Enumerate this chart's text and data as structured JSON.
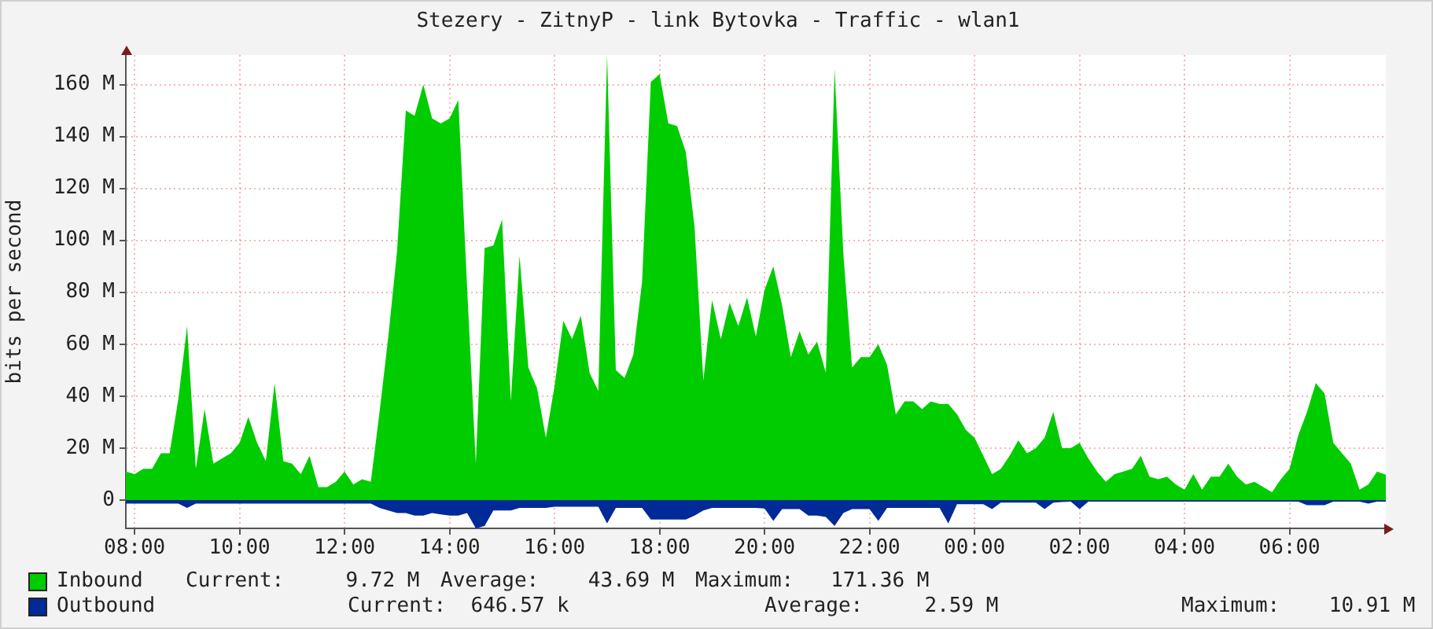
{
  "chart_data": {
    "type": "area",
    "title": "Stezery - ZitnyP - link Bytovka - Traffic - wlan1",
    "ylabel": "bits per second",
    "categories": [
      null,
      "08:00",
      null,
      null,
      null,
      null,
      null,
      null,
      null,
      null,
      null,
      null,
      null,
      "10:00",
      null,
      null,
      null,
      null,
      null,
      null,
      null,
      null,
      null,
      null,
      null,
      "12:00",
      null,
      null,
      null,
      null,
      null,
      null,
      null,
      null,
      null,
      null,
      null,
      "14:00",
      null,
      null,
      null,
      null,
      null,
      null,
      null,
      null,
      null,
      null,
      null,
      "16:00",
      null,
      null,
      null,
      null,
      null,
      null,
      null,
      null,
      null,
      null,
      null,
      "18:00",
      null,
      null,
      null,
      null,
      null,
      null,
      null,
      null,
      null,
      null,
      null,
      "20:00",
      null,
      null,
      null,
      null,
      null,
      null,
      null,
      null,
      null,
      null,
      null,
      "22:00",
      null,
      null,
      null,
      null,
      null,
      null,
      null,
      null,
      null,
      null,
      null,
      "00:00",
      null,
      null,
      null,
      null,
      null,
      null,
      null,
      null,
      null,
      null,
      null,
      "02:00",
      null,
      null,
      null,
      null,
      null,
      null,
      null,
      null,
      null,
      null,
      null,
      "04:00",
      null,
      null,
      null,
      null,
      null,
      null,
      null,
      null,
      null,
      null,
      null,
      "06:00",
      null,
      null,
      null,
      null,
      null,
      null,
      null,
      null,
      null,
      null,
      null
    ],
    "ylim": [
      -10.91,
      171.36
    ],
    "yticks": [
      0,
      {
        "value": 20,
        "label": "20 M"
      },
      {
        "value": 40,
        "label": "40 M"
      },
      {
        "value": 60,
        "label": "60 M"
      },
      {
        "value": 80,
        "label": "80 M"
      },
      {
        "value": 100,
        "label": "100 M"
      },
      {
        "value": 120,
        "label": "120 M"
      },
      {
        "value": 140,
        "label": "140 M"
      },
      {
        "value": 160,
        "label": "160 M"
      }
    ],
    "grid": true,
    "legend": "bottom",
    "series": [
      {
        "name": "Inbound",
        "color": "#00cc00",
        "values": [
          11,
          10,
          12,
          12,
          18,
          18,
          39,
          67,
          12,
          35,
          14,
          16,
          18,
          22,
          32,
          22,
          15,
          45,
          15,
          14,
          10,
          17,
          5,
          5,
          7,
          11,
          6,
          8,
          7,
          34,
          63,
          96,
          150,
          148,
          160,
          147,
          145,
          147,
          154,
          82,
          14,
          97,
          98,
          108,
          38,
          94,
          51,
          43,
          24,
          44,
          69,
          62,
          71,
          49,
          42,
          171.36,
          50,
          47,
          56,
          84,
          161,
          164,
          145,
          144,
          134,
          105,
          46,
          77,
          62,
          76,
          67,
          78,
          63,
          81,
          90,
          75,
          55,
          65,
          56,
          61,
          49,
          166,
          95,
          51,
          55,
          55,
          60,
          52,
          33,
          38,
          38,
          35,
          38,
          37,
          37,
          33,
          27,
          24,
          17,
          10,
          12,
          17,
          23,
          18,
          20,
          24,
          34,
          20,
          20,
          22,
          16,
          11,
          7,
          10,
          11,
          12,
          17,
          9,
          8,
          9,
          6,
          4,
          10,
          4,
          9,
          9,
          14,
          9,
          6,
          7,
          5,
          3,
          8,
          12,
          25,
          34,
          45,
          41,
          22,
          18,
          14,
          4,
          6,
          11,
          9.72
        ]
      },
      {
        "name": "Outbound",
        "color": "#002a97",
        "values": [
          -1.4,
          -1.4,
          -1.4,
          -1.4,
          -1.4,
          -1.4,
          -1.4,
          -3,
          -1.4,
          -1.4,
          -1.4,
          -1.4,
          -1.4,
          -1.4,
          -1.4,
          -1.4,
          -1.4,
          -1.4,
          -1.4,
          -1.4,
          -1.4,
          -1.4,
          -1.4,
          -1.4,
          -1.4,
          -1.4,
          -1.4,
          -1.4,
          -1.4,
          -3,
          -4,
          -5,
          -5,
          -6,
          -6,
          -5,
          -5.5,
          -6,
          -6,
          -5,
          -10.91,
          -10,
          -4,
          -4,
          -4,
          -3,
          -3,
          -3,
          -3,
          -2.6,
          -2.6,
          -2.6,
          -2.6,
          -2.6,
          -2.6,
          -9,
          -3,
          -3,
          -3,
          -3,
          -7.5,
          -7.5,
          -7.5,
          -7.5,
          -7.5,
          -6,
          -4,
          -3,
          -3,
          -3,
          -3,
          -3,
          -3,
          -3.3,
          -8,
          -3.5,
          -3.5,
          -3.5,
          -6,
          -6,
          -6.5,
          -10,
          -5,
          -3.5,
          -3.5,
          -3.5,
          -8,
          -3,
          -3,
          -3,
          -3,
          -3,
          -3,
          -3,
          -9,
          -1.6,
          -1.6,
          -1.6,
          -1.6,
          -3.5,
          -1,
          -1,
          -1,
          -1,
          -1,
          -3.5,
          -1,
          -0.8,
          -0.6,
          -3.5,
          -0.6,
          -0.6,
          -0.6,
          -0.6,
          -0.6,
          -0.6,
          -0.6,
          -0.6,
          -0.6,
          -0.6,
          -0.6,
          -0.6,
          -0.6,
          -0.6,
          -0.6,
          -0.6,
          -0.6,
          -0.6,
          -0.6,
          -0.6,
          -0.6,
          -0.6,
          -0.6,
          -0.6,
          -0.6,
          -2,
          -2,
          -2,
          -0.6,
          -0.6,
          -0.6,
          -0.6,
          -1.4,
          -0.6,
          -0.65
        ]
      }
    ],
    "annotations": [
      "Current:     9.72 M",
      "Average:    43.69 M",
      "Maximum:   171.36 M",
      "Current:  646.57 k",
      "Average:     2.59 M",
      "Maximum:    10.91 M"
    ]
  }
}
